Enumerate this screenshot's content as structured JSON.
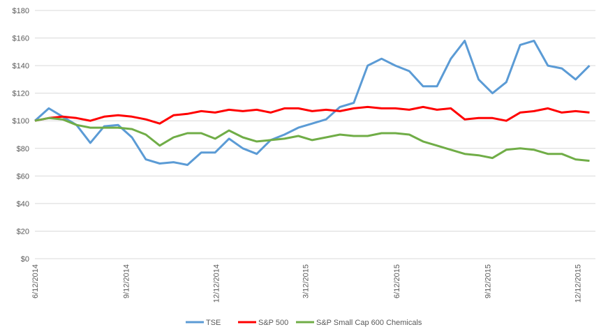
{
  "chart_data": {
    "type": "line",
    "title": "",
    "xlabel": "",
    "ylabel": "",
    "ylim": [
      0,
      180
    ],
    "y_ticks": [
      "$0",
      "$20",
      "$40",
      "$60",
      "$80",
      "$100",
      "$120",
      "$140",
      "$160",
      "$180"
    ],
    "y_tick_values": [
      0,
      20,
      40,
      60,
      80,
      100,
      120,
      140,
      160,
      180
    ],
    "x_range": [
      "2014-06-12",
      "2015-12-30"
    ],
    "x_ticks": [
      "6/12/2014",
      "9/12/2014",
      "12/12/2014",
      "3/12/2015",
      "6/12/2015",
      "9/12/2015",
      "12/12/2015"
    ],
    "x_tick_dates": [
      "2014-06-12",
      "2014-09-12",
      "2014-12-12",
      "2015-03-12",
      "2015-06-12",
      "2015-09-12",
      "2015-12-12"
    ],
    "grid": "horizontal",
    "legend_position": "bottom",
    "x": [
      "2014-06-12",
      "2014-06-26",
      "2014-07-10",
      "2014-07-24",
      "2014-08-07",
      "2014-08-21",
      "2014-09-04",
      "2014-09-18",
      "2014-10-02",
      "2014-10-16",
      "2014-10-30",
      "2014-11-13",
      "2014-11-27",
      "2014-12-11",
      "2014-12-25",
      "2015-01-08",
      "2015-01-22",
      "2015-02-05",
      "2015-02-19",
      "2015-03-05",
      "2015-03-19",
      "2015-04-02",
      "2015-04-16",
      "2015-04-30",
      "2015-05-14",
      "2015-05-28",
      "2015-06-11",
      "2015-06-25",
      "2015-07-09",
      "2015-07-23",
      "2015-08-06",
      "2015-08-20",
      "2015-09-03",
      "2015-09-17",
      "2015-10-01",
      "2015-10-15",
      "2015-10-29",
      "2015-11-12",
      "2015-11-26",
      "2015-12-10",
      "2015-12-24"
    ],
    "series": [
      {
        "name": "TSE",
        "color": "#5B9BD5",
        "values": [
          100,
          109,
          103,
          97,
          84,
          96,
          97,
          88,
          72,
          69,
          70,
          68,
          77,
          77,
          87,
          80,
          76,
          86,
          90,
          95,
          98,
          101,
          110,
          113,
          140,
          145,
          140,
          136,
          125,
          125,
          145,
          158,
          130,
          120,
          128,
          155,
          158,
          140,
          138,
          130,
          140
        ]
      },
      {
        "name": "S&P 500",
        "color": "#FF0000",
        "values": [
          100,
          102,
          103,
          102,
          100,
          103,
          104,
          103,
          101,
          98,
          104,
          105,
          107,
          106,
          108,
          107,
          108,
          106,
          109,
          109,
          107,
          108,
          107,
          109,
          110,
          109,
          109,
          108,
          110,
          108,
          109,
          101,
          102,
          102,
          100,
          106,
          107,
          109,
          106,
          107,
          106
        ]
      },
      {
        "name": "S&P Small Cap 600 Chemicals",
        "color": "#70AD47",
        "values": [
          100,
          102,
          101,
          97,
          95,
          95,
          95,
          94,
          90,
          82,
          88,
          91,
          91,
          87,
          93,
          88,
          85,
          86,
          87,
          89,
          86,
          88,
          90,
          89,
          89,
          91,
          91,
          90,
          85,
          82,
          79,
          76,
          75,
          73,
          79,
          80,
          79,
          76,
          76,
          72,
          71
        ]
      }
    ]
  }
}
